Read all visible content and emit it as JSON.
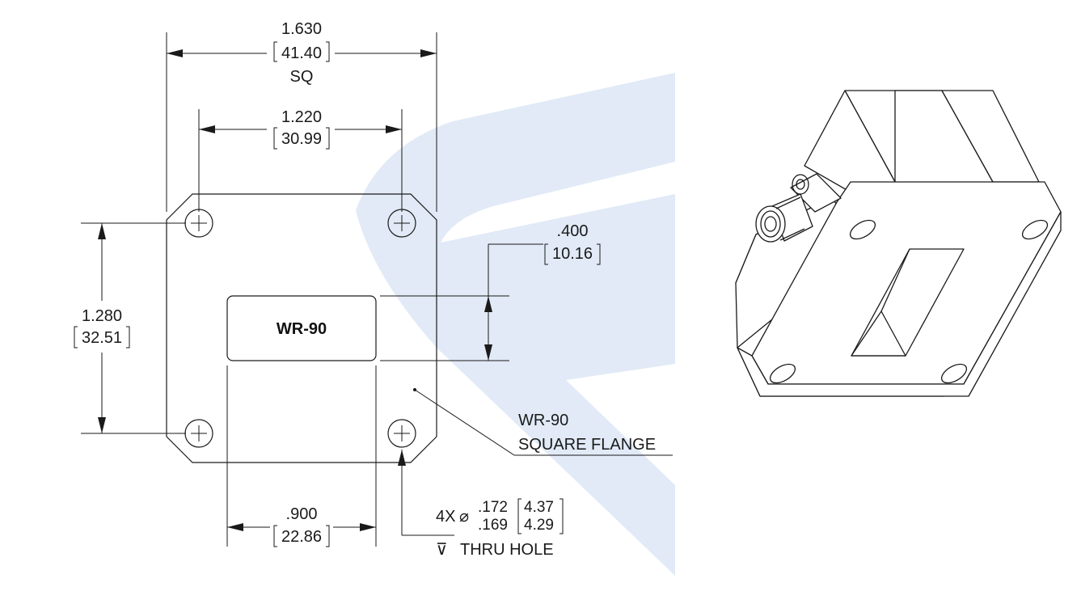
{
  "drawing": {
    "overall_width": {
      "inch": "1.630",
      "mm": "41.40",
      "note": "SQ"
    },
    "hole_spacing_horizontal": {
      "inch": "1.220",
      "mm": "30.99"
    },
    "hole_spacing_vertical": {
      "inch": "1.280",
      "mm": "32.51"
    },
    "aperture_height": {
      "inch": ".400",
      "mm": "10.16"
    },
    "aperture_width": {
      "inch": ".900",
      "mm": "22.86"
    },
    "aperture_label": "WR-90",
    "flange_callout": {
      "line1": "WR-90",
      "line2": "SQUARE FLANGE"
    },
    "hole_callout": {
      "qty": "4X",
      "diameter_symbol": "⌀",
      "max_inch": ".172",
      "min_inch": ".169",
      "max_mm": "4.37",
      "min_mm": "4.29",
      "depth_symbol": "⊽",
      "depth_text": "THRU HOLE"
    }
  },
  "colors": {
    "line": "#1a1a1a",
    "watermark": "#c9d8ee",
    "background": "#ffffff"
  },
  "icons": [
    "watermark-logo",
    "isometric-adapter-view",
    "sma-connector-icon"
  ]
}
